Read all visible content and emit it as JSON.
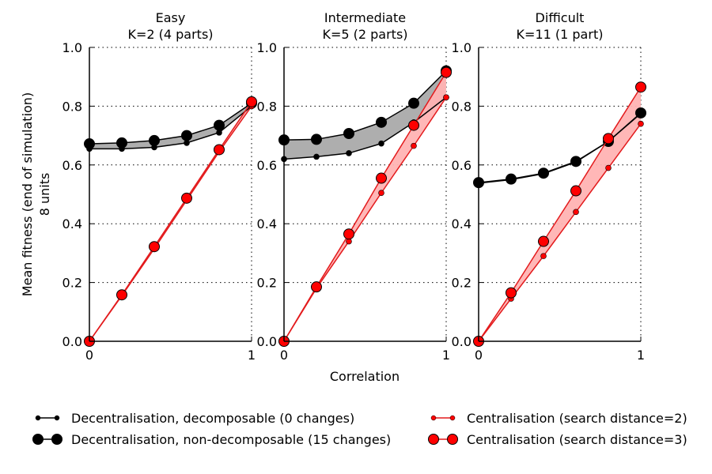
{
  "figure": {
    "ylabel_line1": "Mean fitness (end of simulation)",
    "ylabel_line2": "8 units",
    "xlabel": "Correlation"
  },
  "legend": [
    {
      "label": "Decentralisation, decomposable (0 changes)",
      "color": "#000000",
      "marker": "small"
    },
    {
      "label": "Decentralisation, non-decomposable (15 changes)",
      "color": "#000000",
      "marker": "large"
    },
    {
      "label": "Centralisation (search distance=2)",
      "color": "#e31a1c",
      "marker": "small"
    },
    {
      "label": "Centralisation (search distance=3)",
      "color": "#e31a1c",
      "marker": "large"
    }
  ],
  "colors": {
    "black_fill": "#aaaaaa",
    "red_line": "#e31a1c",
    "red_marker": "#ff0000",
    "red_fill": "#ffb3b3"
  },
  "chart_data": [
    {
      "type": "line",
      "title_line1": "Easy",
      "title_line2": "K=2 (4 parts)",
      "x": [
        0,
        0.2,
        0.4,
        0.6,
        0.8,
        1.0
      ],
      "xticks": [
        "0",
        "1"
      ],
      "yticks": [
        "0.0",
        "0.2",
        "0.4",
        "0.6",
        "0.8",
        "1.0"
      ],
      "ylim": [
        0,
        1
      ],
      "xlim": [
        0,
        1
      ],
      "grid": true,
      "series": [
        {
          "name": "Decentralisation, decomposable (0 changes)",
          "values": [
            0.655,
            0.655,
            0.66,
            0.675,
            0.71,
            0.8
          ]
        },
        {
          "name": "Decentralisation, non-decomposable (15 changes)",
          "values": [
            0.672,
            0.675,
            0.683,
            0.7,
            0.735,
            0.81
          ]
        },
        {
          "name": "Centralisation (search distance=2)",
          "values": [
            0.0,
            0.155,
            0.315,
            0.48,
            0.645,
            0.8
          ]
        },
        {
          "name": "Centralisation (search distance=3)",
          "values": [
            0.0,
            0.158,
            0.322,
            0.487,
            0.652,
            0.815
          ]
        }
      ]
    },
    {
      "type": "line",
      "title_line1": "Intermediate",
      "title_line2": "K=5 (2 parts)",
      "x": [
        0,
        0.2,
        0.4,
        0.6,
        0.8,
        1.0
      ],
      "xticks": [
        "0",
        "1"
      ],
      "yticks": [
        "0.0",
        "0.2",
        "0.4",
        "0.6",
        "0.8",
        "1.0"
      ],
      "ylim": [
        0,
        1
      ],
      "xlim": [
        0,
        1
      ],
      "grid": true,
      "series": [
        {
          "name": "Decentralisation, decomposable (0 changes)",
          "values": [
            0.62,
            0.628,
            0.64,
            0.673,
            0.745,
            0.83
          ]
        },
        {
          "name": "Decentralisation, non-decomposable (15 changes)",
          "values": [
            0.685,
            0.687,
            0.707,
            0.745,
            0.81,
            0.92
          ]
        },
        {
          "name": "Centralisation (search distance=2)",
          "values": [
            0.0,
            0.18,
            0.34,
            0.505,
            0.665,
            0.83
          ]
        },
        {
          "name": "Centralisation (search distance=3)",
          "values": [
            0.0,
            0.185,
            0.365,
            0.555,
            0.735,
            0.915
          ]
        }
      ]
    },
    {
      "type": "line",
      "title_line1": "Difficult",
      "title_line2": "K=11 (1 part)",
      "x": [
        0,
        0.2,
        0.4,
        0.6,
        0.8,
        1.0
      ],
      "xticks": [
        "0",
        "1"
      ],
      "yticks": [
        "0.0",
        "0.2",
        "0.4",
        "0.6",
        "0.8",
        "1.0"
      ],
      "ylim": [
        0,
        1
      ],
      "xlim": [
        0,
        1
      ],
      "grid": true,
      "series": [
        {
          "name": "Decentralisation, decomposable (0 changes)",
          "values": [
            0.538,
            0.55,
            0.57,
            0.61,
            0.68,
            0.775
          ]
        },
        {
          "name": "Decentralisation, non-decomposable (15 changes)",
          "values": [
            0.54,
            0.552,
            0.572,
            0.612,
            0.68,
            0.777
          ]
        },
        {
          "name": "Centralisation (search distance=2)",
          "values": [
            0.0,
            0.145,
            0.29,
            0.44,
            0.59,
            0.74
          ]
        },
        {
          "name": "Centralisation (search distance=3)",
          "values": [
            0.0,
            0.165,
            0.34,
            0.512,
            0.69,
            0.865
          ]
        }
      ]
    }
  ]
}
